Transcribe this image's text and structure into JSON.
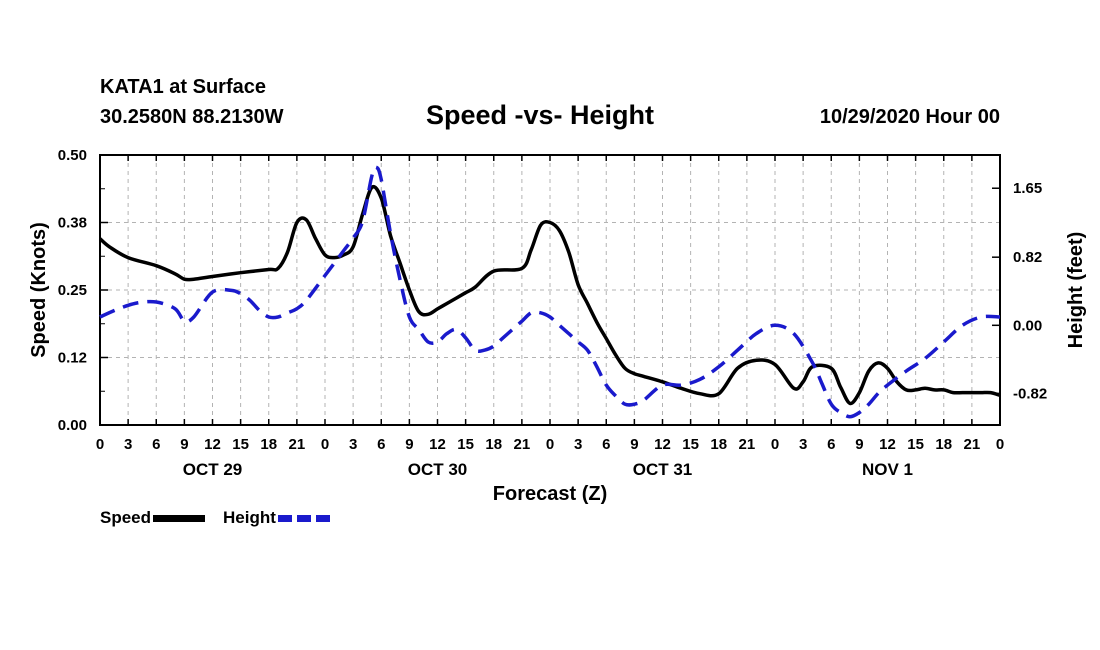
{
  "header": {
    "station": "KATA1 at Surface",
    "coords": "30.2580N 88.2130W",
    "title": "Speed -vs- Height",
    "date": "10/29/2020 Hour 00"
  },
  "chart_data": {
    "type": "line",
    "title": "Speed -vs- Height",
    "xlabel": "Forecast (Z)",
    "ylabel": "Speed (Knots)",
    "y2label": "Height (feet)",
    "x_tick_labels": [
      "0",
      "3",
      "6",
      "9",
      "12",
      "15",
      "18",
      "21",
      "0",
      "3",
      "6",
      "9",
      "12",
      "15",
      "18",
      "21",
      "0",
      "3",
      "6",
      "9",
      "12",
      "15",
      "18",
      "21",
      "0",
      "3",
      "6",
      "9",
      "12",
      "15",
      "18",
      "21",
      "0"
    ],
    "date_labels": [
      {
        "label": "OCT 29",
        "hour": 12
      },
      {
        "label": "OCT 30",
        "hour": 36
      },
      {
        "label": "OCT 31",
        "hour": 60
      },
      {
        "label": "NOV 1",
        "hour": 84
      }
    ],
    "x_range_hours": [
      0,
      96
    ],
    "y_left": {
      "ticks": [
        "0.00",
        "0.12",
        "0.25",
        "0.38",
        "0.50"
      ],
      "values": [
        0,
        0.125,
        0.25,
        0.375,
        0.5
      ],
      "range": [
        0,
        0.5
      ]
    },
    "y_right": {
      "ticks": [
        "-0.82",
        "0.00",
        "0.82",
        "1.65"
      ],
      "values": [
        -0.82,
        0,
        0.82,
        1.65
      ],
      "range": [
        -1.2,
        2.05
      ]
    },
    "grid": true,
    "colors": {
      "speed": "#000000",
      "height": "#1a1acc",
      "grid": "#b3b3b3"
    },
    "series": [
      {
        "name": "Speed",
        "axis": "left",
        "hours": [
          0,
          1,
          3,
          6,
          8,
          9,
          10,
          12,
          15,
          18,
          19,
          20,
          21,
          22,
          23,
          24,
          25,
          26,
          27,
          28,
          29,
          30,
          31,
          32,
          33,
          34,
          35,
          36,
          37,
          38,
          39,
          40,
          42,
          45,
          46,
          47,
          48,
          49,
          50,
          51,
          52,
          53,
          54,
          55,
          56,
          57,
          58,
          60,
          62,
          64,
          66,
          68,
          70,
          72,
          74,
          75,
          76,
          78,
          79,
          80,
          81,
          82,
          83,
          84,
          85,
          86,
          87,
          88,
          89,
          90,
          91,
          92,
          93,
          94,
          95,
          96
        ],
        "values": [
          0.345,
          0.33,
          0.31,
          0.295,
          0.28,
          0.27,
          0.27,
          0.275,
          0.282,
          0.288,
          0.29,
          0.32,
          0.375,
          0.38,
          0.345,
          0.315,
          0.31,
          0.315,
          0.33,
          0.39,
          0.44,
          0.42,
          0.35,
          0.3,
          0.25,
          0.21,
          0.205,
          0.215,
          0.225,
          0.235,
          0.245,
          0.255,
          0.285,
          0.29,
          0.325,
          0.37,
          0.375,
          0.36,
          0.32,
          0.26,
          0.225,
          0.19,
          0.16,
          0.13,
          0.105,
          0.095,
          0.09,
          0.08,
          0.068,
          0.058,
          0.058,
          0.105,
          0.12,
          0.112,
          0.068,
          0.08,
          0.108,
          0.105,
          0.07,
          0.04,
          0.06,
          0.1,
          0.115,
          0.105,
          0.08,
          0.065,
          0.065,
          0.068,
          0.065,
          0.065,
          0.06,
          0.06,
          0.06,
          0.06,
          0.06,
          0.055
        ],
        "note": "Solid black line; values after hour 87 approximate oscillation pattern"
      },
      {
        "name": "Height",
        "axis": "right",
        "hours": [
          0,
          2,
          4,
          6,
          8,
          9,
          10,
          12,
          14,
          15,
          16,
          17,
          18,
          19,
          20,
          21,
          22,
          24,
          26,
          27,
          28,
          29,
          29.5,
          30,
          31,
          32,
          33,
          34,
          35,
          36,
          37,
          38,
          39,
          40,
          41,
          42,
          43,
          44,
          45,
          46,
          47,
          48,
          49,
          50,
          51,
          52,
          53,
          54,
          55,
          56,
          57,
          58,
          60,
          62,
          64,
          66,
          68,
          70,
          72,
          74,
          76,
          77,
          78,
          79,
          80,
          81,
          82,
          83,
          84,
          86,
          88,
          90,
          92,
          94,
          96
        ],
        "values": [
          0.1,
          0.2,
          0.27,
          0.28,
          0.2,
          0.05,
          0.1,
          0.4,
          0.42,
          0.38,
          0.3,
          0.18,
          0.1,
          0.1,
          0.15,
          0.2,
          0.3,
          0.6,
          0.9,
          1.05,
          1.25,
          1.8,
          1.9,
          1.75,
          1.1,
          0.55,
          0.1,
          -0.05,
          -0.2,
          -0.2,
          -0.1,
          -0.05,
          -0.15,
          -0.3,
          -0.3,
          -0.25,
          -0.15,
          -0.05,
          0.05,
          0.15,
          0.15,
          0.1,
          0.0,
          -0.1,
          -0.2,
          -0.3,
          -0.5,
          -0.72,
          -0.85,
          -0.95,
          -0.95,
          -0.9,
          -0.72,
          -0.72,
          -0.65,
          -0.5,
          -0.3,
          -0.1,
          0.0,
          -0.1,
          -0.45,
          -0.7,
          -0.95,
          -1.05,
          -1.1,
          -1.05,
          -0.95,
          -0.82,
          -0.72,
          -0.55,
          -0.4,
          -0.2,
          0.0,
          0.1,
          0.1
        ],
        "note": "Dashed blue line"
      }
    ],
    "legend": [
      {
        "label": "Speed",
        "style": "solid",
        "color": "#000000"
      },
      {
        "label": "Height",
        "style": "dashed",
        "color": "#1a1acc"
      }
    ],
    "legend_position": "bottom-left"
  }
}
